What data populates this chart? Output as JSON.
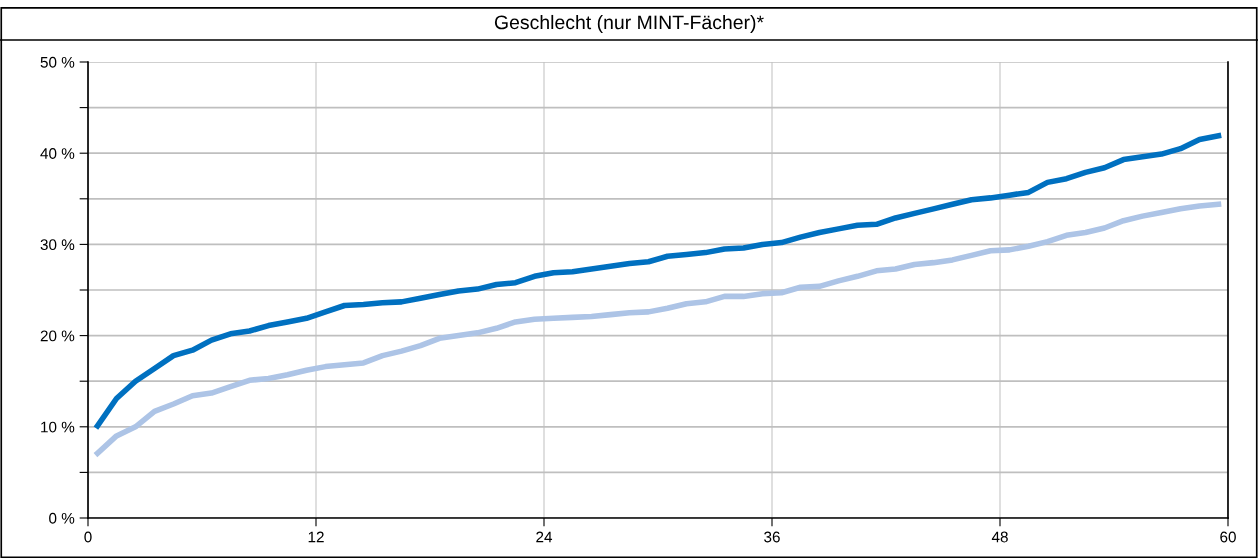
{
  "chart_data": {
    "type": "line",
    "title": "Geschlecht (nur MINT-Fächer)*",
    "x": [
      0.5,
      1.5,
      2.5,
      3.5,
      4.5,
      5.5,
      6.5,
      7.5,
      8.5,
      9.5,
      10.5,
      11.5,
      12.5,
      13.5,
      14.5,
      15.5,
      16.5,
      17.5,
      18.5,
      19.5,
      20.5,
      21.5,
      22.5,
      23.5,
      24.5,
      25.5,
      26.5,
      27.5,
      28.5,
      29.5,
      30.5,
      31.5,
      32.5,
      33.5,
      34.5,
      35.5,
      36.5,
      37.5,
      38.5,
      39.5,
      40.5,
      41.5,
      42.5,
      43.5,
      44.5,
      45.5,
      46.5,
      47.5,
      48.5,
      49.5,
      50.5,
      51.5,
      52.5,
      53.5,
      54.5,
      55.5,
      56.5,
      57.5,
      58.5,
      59.5
    ],
    "series": [
      {
        "color": "#0070c0",
        "values": [
          10.1,
          13.1,
          15.0,
          16.4,
          17.8,
          18.4,
          19.5,
          20.2,
          20.5,
          21.1,
          21.5,
          21.9,
          22.6,
          23.3,
          23.4,
          23.6,
          23.7,
          24.1,
          24.5,
          24.9,
          25.1,
          25.6,
          25.8,
          26.5,
          26.9,
          27.0,
          27.3,
          27.6,
          27.9,
          28.1,
          28.7,
          28.9,
          29.1,
          29.5,
          29.6,
          30.0,
          30.2,
          30.8,
          31.3,
          31.7,
          32.1,
          32.2,
          32.9,
          33.4,
          33.9,
          34.4,
          34.9,
          35.1,
          35.4,
          35.7,
          36.8,
          37.2,
          37.9,
          38.4,
          39.3,
          39.6,
          39.9,
          40.5,
          41.5,
          41.9
        ]
      },
      {
        "color": "#adc4e6",
        "values": [
          7.1,
          9.0,
          10.0,
          11.7,
          12.5,
          13.4,
          13.7,
          14.4,
          15.1,
          15.3,
          15.7,
          16.2,
          16.6,
          16.8,
          17.0,
          17.8,
          18.3,
          18.9,
          19.7,
          20.0,
          20.3,
          20.8,
          21.5,
          21.8,
          21.9,
          22.0,
          22.1,
          22.3,
          22.5,
          22.6,
          23.0,
          23.5,
          23.7,
          24.3,
          24.3,
          24.6,
          24.7,
          25.3,
          25.4,
          26.0,
          26.5,
          27.1,
          27.3,
          27.8,
          28.0,
          28.3,
          28.8,
          29.3,
          29.4,
          29.8,
          30.3,
          31.0,
          31.3,
          31.8,
          32.6,
          33.1,
          33.5,
          33.9,
          34.2,
          34.4
        ]
      }
    ],
    "xlim": [
      0,
      60
    ],
    "xticks": [
      0,
      12,
      24,
      36,
      48,
      60
    ],
    "ylim": [
      0,
      50
    ],
    "yticks": [
      {
        "value": 0,
        "label": "0 %"
      },
      {
        "value": 5,
        "label": null
      },
      {
        "value": 10,
        "label": "10 %"
      },
      {
        "value": 15,
        "label": null
      },
      {
        "value": 20,
        "label": "20 %"
      },
      {
        "value": 25,
        "label": null
      },
      {
        "value": 30,
        "label": "30 %"
      },
      {
        "value": 35,
        "label": null
      },
      {
        "value": 40,
        "label": "40 %"
      },
      {
        "value": 45,
        "label": null
      },
      {
        "value": 50,
        "label": "50 %"
      }
    ],
    "grid": true,
    "marker": "none",
    "line_style": "solid"
  }
}
